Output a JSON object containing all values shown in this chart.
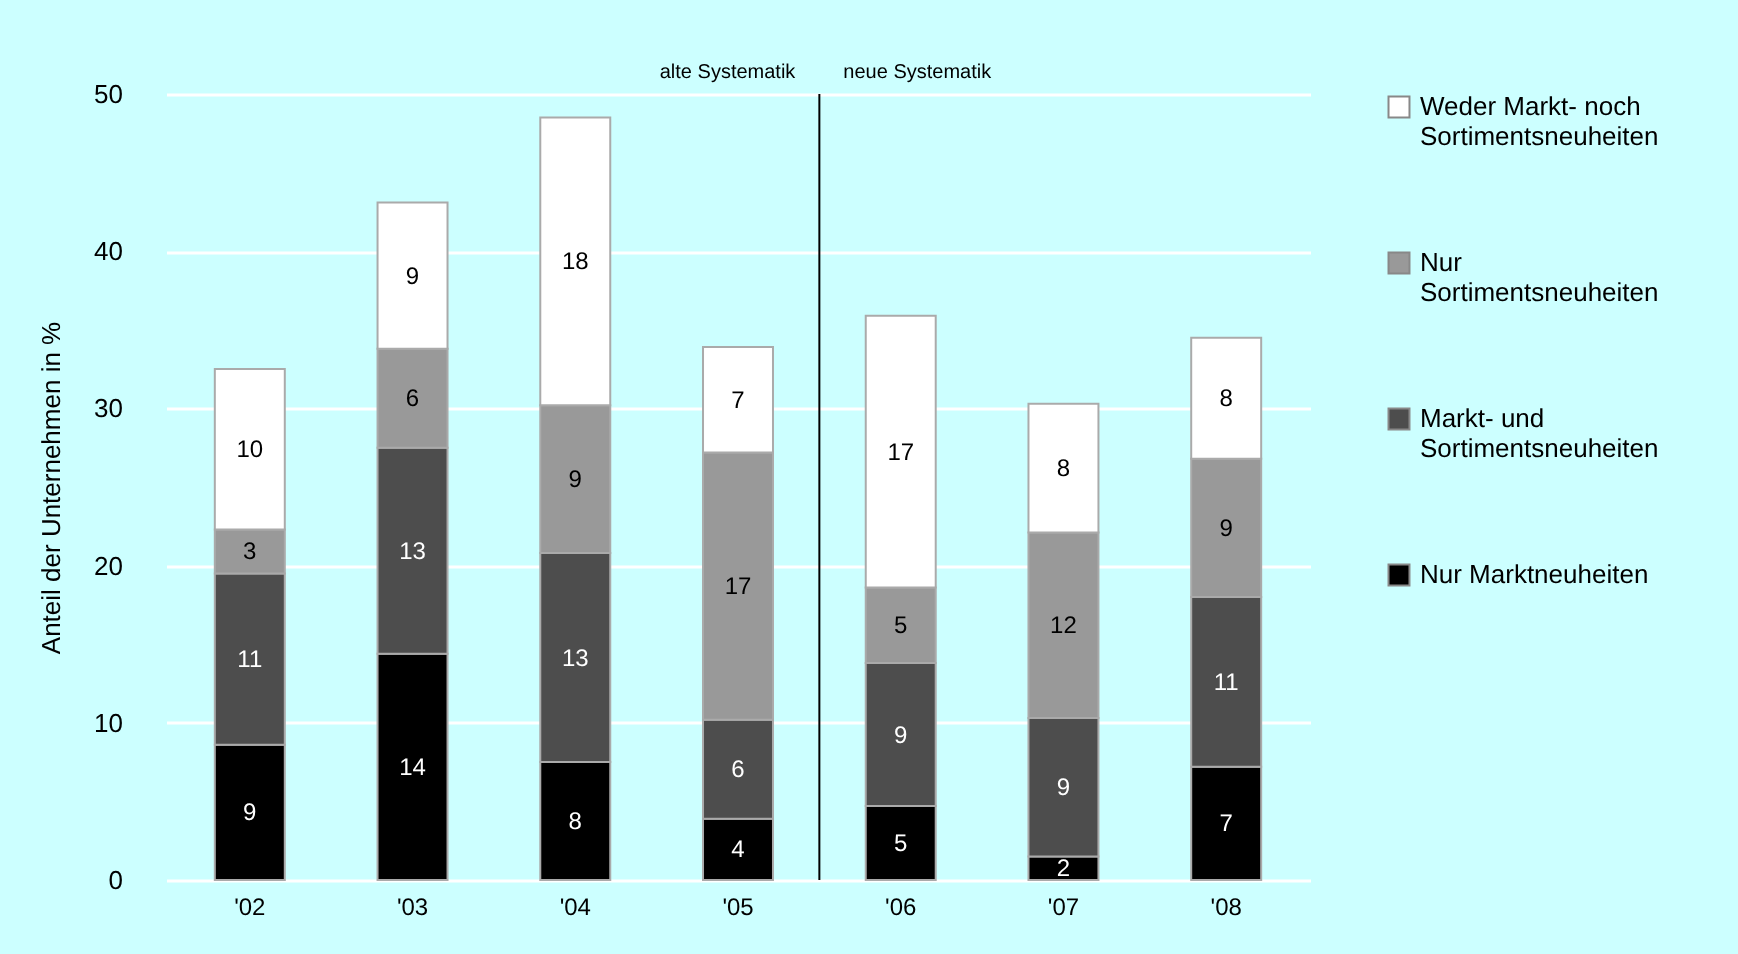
{
  "chart_data": {
    "type": "bar",
    "stacked": true,
    "ylabel": "Anteil der Unternehmen in %",
    "categories": [
      "'02",
      "'03",
      "'04",
      "'05",
      "'06",
      "'07",
      "'08"
    ],
    "series": [
      {
        "name": "Nur Marktneuheiten",
        "color": "#000000",
        "values": [
          8.6,
          14.4,
          7.5,
          3.9,
          4.7,
          1.5,
          7.2
        ],
        "value_labels": [
          "9",
          "14",
          "8",
          "4",
          "5",
          "2",
          "7"
        ]
      },
      {
        "name": "Markt- und Sortimentsneuheiten",
        "color": "#4d4d4d",
        "values": [
          10.9,
          13.1,
          13.3,
          6.3,
          9.1,
          8.8,
          10.8
        ],
        "value_labels": [
          "11",
          "13",
          "13",
          "6",
          "9",
          "9",
          "11"
        ]
      },
      {
        "name": "Nur Sortimentsneuheiten",
        "color": "#999999",
        "values": [
          2.8,
          6.3,
          9.4,
          17.0,
          4.8,
          11.8,
          8.8
        ],
        "value_labels": [
          "3",
          "6",
          "9",
          "17",
          "5",
          "12",
          "9"
        ]
      },
      {
        "name": "Weder Markt- noch Sortimentsneuheiten",
        "color": "#ffffff",
        "values": [
          10.2,
          9.3,
          18.3,
          6.7,
          17.3,
          8.2,
          7.7
        ],
        "value_labels": [
          "10",
          "9",
          "18",
          "7",
          "17",
          "8",
          "8"
        ]
      }
    ],
    "ylim": [
      0,
      50
    ],
    "yticks": [
      0,
      10,
      20,
      30,
      40,
      50
    ],
    "grid": "y",
    "legend": "right",
    "ref_lines": [
      {
        "axis": "x",
        "value": "'06"
      }
    ],
    "annotations": [
      "alte Systematik",
      "neue Systematik"
    ]
  }
}
